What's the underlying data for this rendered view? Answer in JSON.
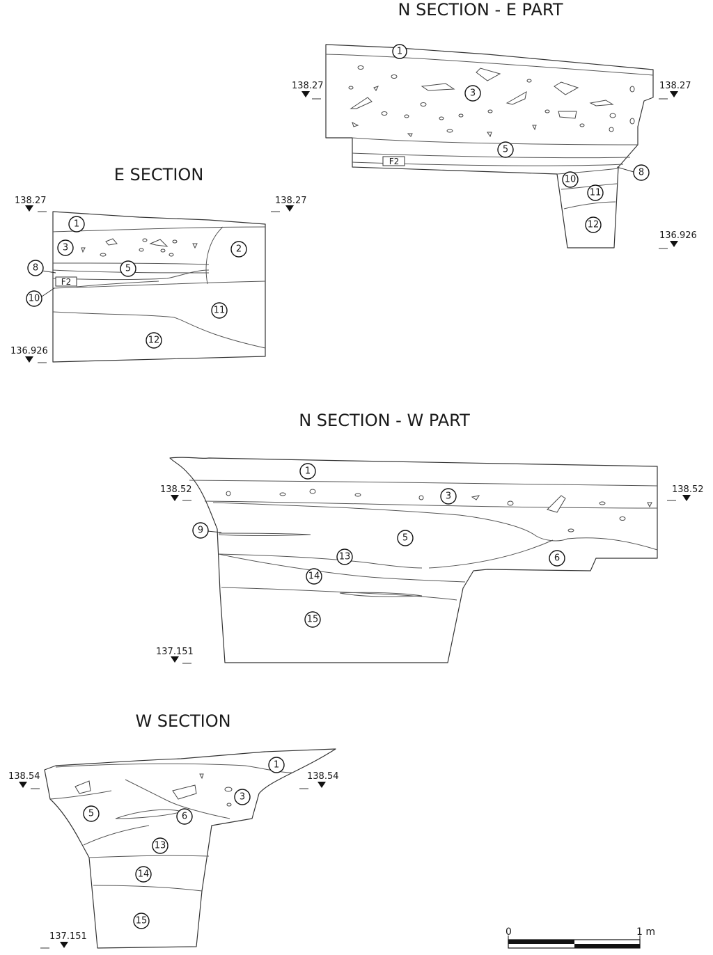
{
  "sections": {
    "n_east": {
      "title": "N SECTION - E PART",
      "elev_top_left": "138.27",
      "elev_top_right": "138.27",
      "elev_bottom": "136.926",
      "feature_label": "F2",
      "layers": [
        "1",
        "3",
        "5",
        "8",
        "10",
        "11",
        "12"
      ]
    },
    "east": {
      "title": "E SECTION",
      "elev_top_left": "138.27",
      "elev_top_right": "138.27",
      "elev_bottom": "136.926",
      "feature_label": "F2",
      "layers": [
        "1",
        "3",
        "2",
        "8",
        "5",
        "10",
        "11",
        "12"
      ]
    },
    "n_west": {
      "title": "N SECTION - W PART",
      "elev_top_left": "138.52",
      "elev_top_right": "138.52",
      "elev_bottom": "137.151",
      "layers": [
        "1",
        "3",
        "9",
        "5",
        "13",
        "6",
        "14",
        "15"
      ]
    },
    "west": {
      "title": "W SECTION",
      "elev_top_left": "138.54",
      "elev_top_right": "138.54",
      "elev_bottom": "137.151",
      "layers": [
        "1",
        "3",
        "5",
        "6",
        "13",
        "14",
        "15"
      ]
    }
  },
  "scale_bar": {
    "start_label": "0",
    "end_label": "1 m"
  },
  "colors": {
    "ink": "#1a1a1a",
    "background": "#ffffff"
  }
}
